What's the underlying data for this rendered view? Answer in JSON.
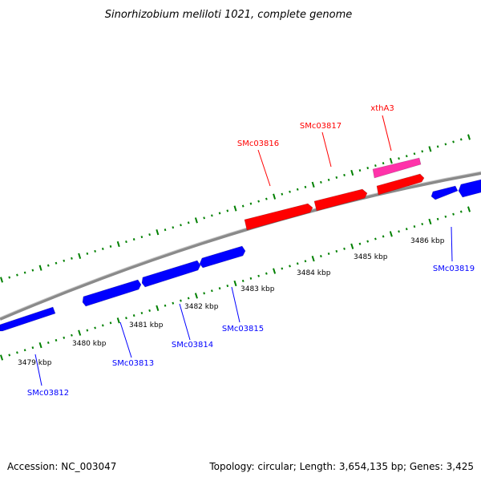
{
  "title": "Sinorhizobium meliloti 1021, complete genome",
  "footer": {
    "accession": "Accession: NC_003047",
    "summary": "Topology: circular; Length: 3,654,135 bp; Genes: 3,425"
  },
  "colors": {
    "forward_strand": "#ff0000",
    "reverse_strand": "#0000ff",
    "rna_gene": "#ff33aa",
    "backbone": "#888888",
    "tick": "#008000"
  },
  "scale_labels": [
    "3479 kbp",
    "3480 kbp",
    "3481 kbp",
    "3482 kbp",
    "3483 kbp",
    "3484 kbp",
    "3485 kbp",
    "3486 kbp"
  ],
  "genes": [
    {
      "name": "SMc03812",
      "strand": "reverse"
    },
    {
      "name": "SMc03813",
      "strand": "reverse"
    },
    {
      "name": "SMc03814",
      "strand": "reverse"
    },
    {
      "name": "SMc03815",
      "strand": "reverse"
    },
    {
      "name": "SMc03816",
      "strand": "forward"
    },
    {
      "name": "SMc03817",
      "strand": "forward"
    },
    {
      "name": "xthA3",
      "strand": "forward"
    },
    {
      "name": "SMc03819",
      "strand": "reverse"
    }
  ]
}
